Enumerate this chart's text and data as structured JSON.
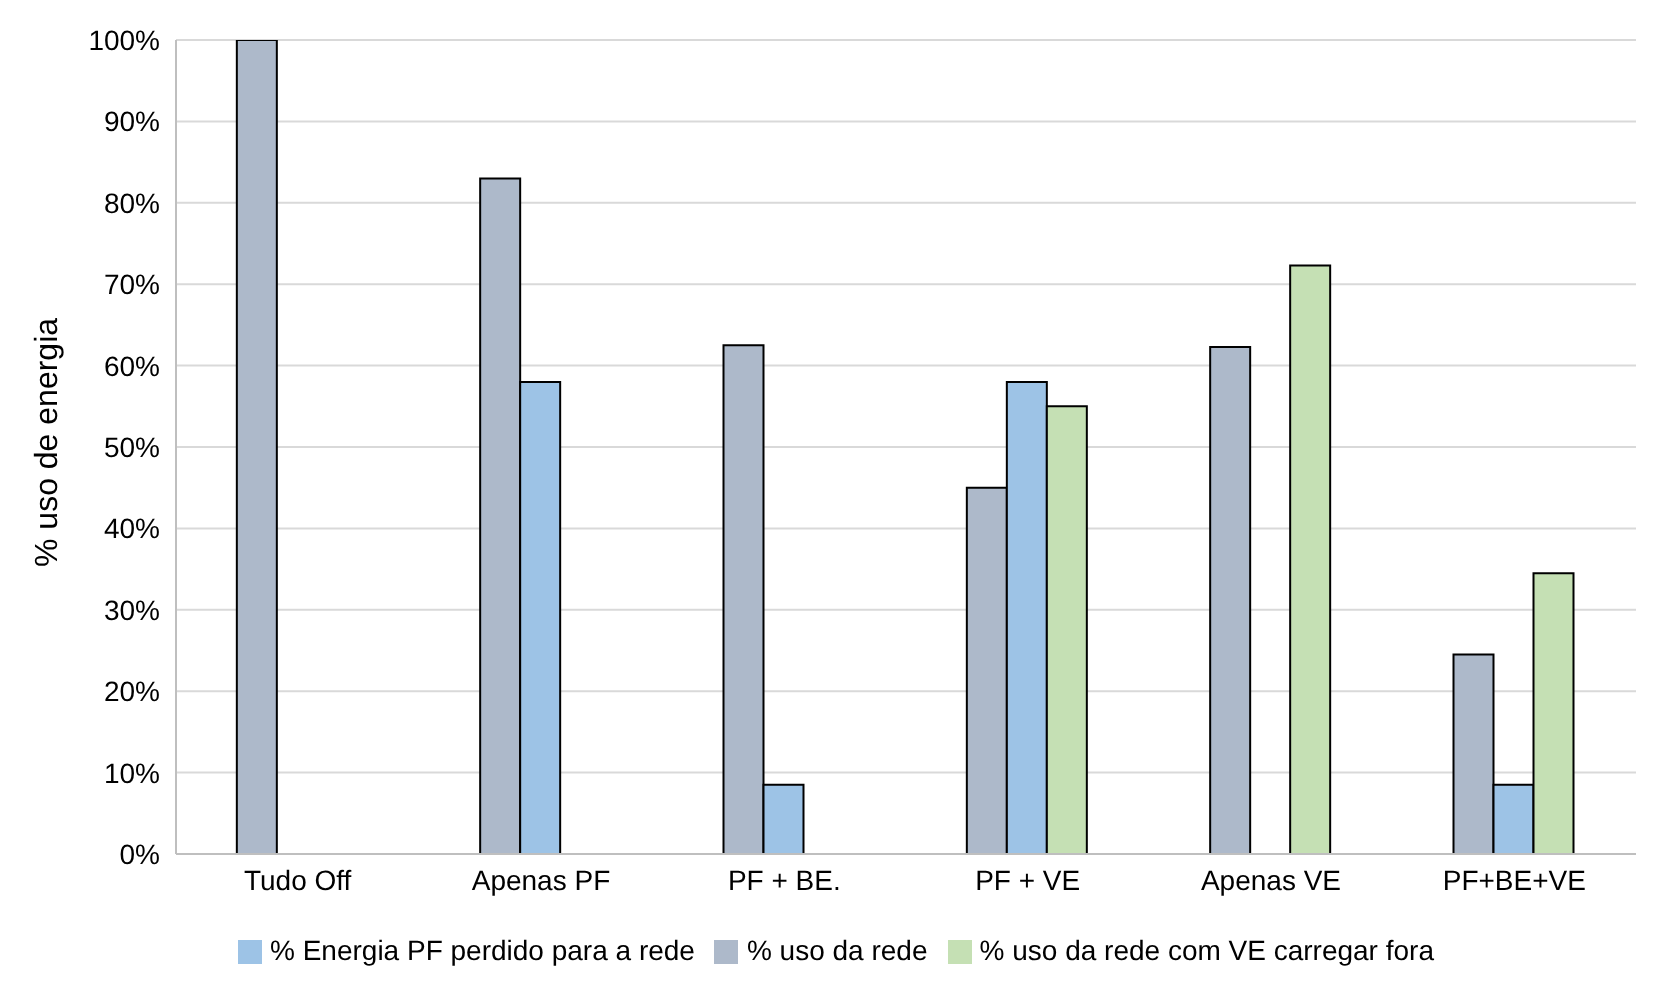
{
  "chart_data": {
    "type": "bar",
    "ylabel": "% uso de energia",
    "categories": [
      "Tudo Off",
      "Apenas PF",
      "PF + BE.",
      "PF + VE",
      "Apenas VE",
      "PF+BE+VE"
    ],
    "series": [
      {
        "name": "% uso da rede",
        "color": "#adb9ca",
        "values": [
          100,
          83,
          62.5,
          45,
          62.3,
          24.5
        ]
      },
      {
        "name": "% Energia PF perdido para a rede",
        "color": "#9dc3e6",
        "values": [
          null,
          58,
          8.5,
          58,
          null,
          8.5
        ]
      },
      {
        "name": "% uso da rede com VE carregar fora",
        "color": "#c5e0b4",
        "values": [
          null,
          null,
          null,
          55,
          72.3,
          34.5
        ]
      }
    ],
    "ylim": [
      0,
      100
    ],
    "yticks": [
      {
        "value": 0,
        "label": "0%"
      },
      {
        "value": 10,
        "label": "10%"
      },
      {
        "value": 20,
        "label": "20%"
      },
      {
        "value": 30,
        "label": "30%"
      },
      {
        "value": 40,
        "label": "40%"
      },
      {
        "value": 50,
        "label": "50%"
      },
      {
        "value": 60,
        "label": "60%"
      },
      {
        "value": 70,
        "label": "70%"
      },
      {
        "value": 80,
        "label": "80%"
      },
      {
        "value": 90,
        "label": "90%"
      },
      {
        "value": 100,
        "label": "100%"
      }
    ],
    "grid": "y",
    "legend": "bottom"
  }
}
